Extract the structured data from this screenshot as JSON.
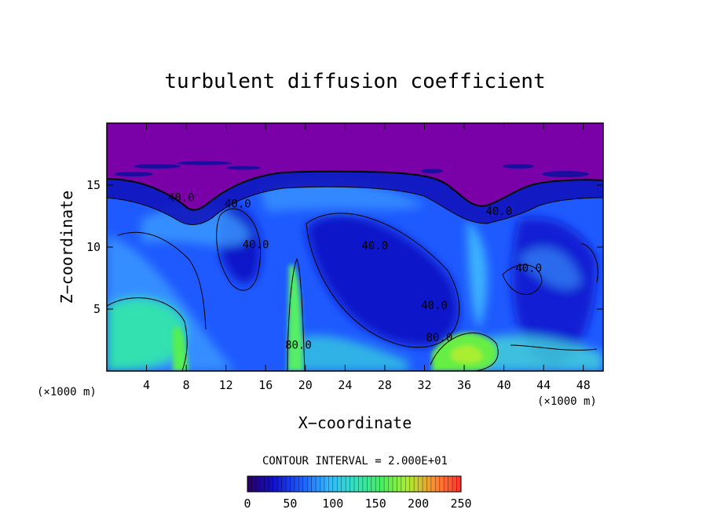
{
  "chart_data": {
    "type": "heatmap",
    "title": "turbulent diffusion coefficient",
    "xlabel": "X−coordinate",
    "ylabel": "Z−coordinate",
    "x_unit": "(×1000 m)",
    "z_unit": "(×1000 m)",
    "xlim": [
      0,
      50
    ],
    "ylim": [
      0,
      20
    ],
    "x_ticks": [
      4,
      8,
      12,
      16,
      20,
      24,
      28,
      32,
      36,
      40,
      44,
      48
    ],
    "y_ticks": [
      5,
      10,
      15
    ],
    "contour_interval_text": "CONTOUR INTERVAL = 2.000E+01",
    "contour_interval": 20,
    "colorbar": {
      "range": [
        0,
        250
      ],
      "ticks": [
        0,
        50,
        100,
        150,
        200,
        250
      ]
    },
    "contour_labels": [
      {
        "text": "40.0",
        "x": 7.5,
        "z": 13.7
      },
      {
        "text": "40.0",
        "x": 13.2,
        "z": 13.2
      },
      {
        "text": "40.0",
        "x": 15.0,
        "z": 9.9
      },
      {
        "text": "40.0",
        "x": 27.0,
        "z": 9.8
      },
      {
        "text": "40.0",
        "x": 39.5,
        "z": 12.6
      },
      {
        "text": "40.0",
        "x": 42.5,
        "z": 8.0
      },
      {
        "text": "40.0",
        "x": 33.0,
        "z": 5.0
      },
      {
        "text": "80.0",
        "x": 19.3,
        "z": 1.8
      },
      {
        "text": "80.0",
        "x": 33.5,
        "z": 2.4
      }
    ],
    "grid": false,
    "colors": {
      "purple": "#7a00a8",
      "deep_blue": "#0000cc",
      "blue": "#1e5aff",
      "light_blue": "#3c9bff",
      "cyan": "#33d6e0",
      "green": "#44ee77",
      "yellow_green": "#aaee33"
    }
  }
}
